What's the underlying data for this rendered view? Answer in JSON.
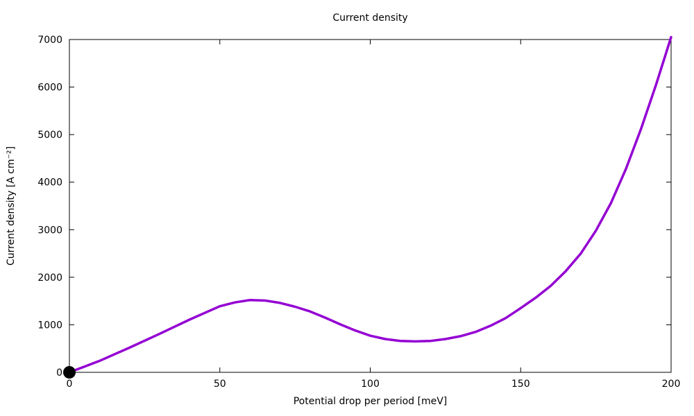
{
  "title": "Current density",
  "chart_data": {
    "type": "line",
    "title": "Current density",
    "xlabel": "Potential drop per period [meV]",
    "ylabel": "Current density [A cm⁻²]",
    "xlim": [
      0,
      200
    ],
    "ylim": [
      0,
      7000
    ],
    "xticks": [
      0,
      50,
      100,
      150,
      200
    ],
    "yticks": [
      0,
      1000,
      2000,
      3000,
      4000,
      5000,
      6000,
      7000
    ],
    "grid": false,
    "legend": "none",
    "line_color": "#9400d3",
    "axis_color": "#000000",
    "marker": {
      "x": 0,
      "y": 0,
      "radius": 9,
      "color": "#000000",
      "shape": "circle"
    },
    "series": [
      {
        "name": "current-density",
        "x": [
          0,
          10,
          20,
          30,
          40,
          50,
          55,
          60,
          65,
          70,
          75,
          80,
          85,
          90,
          95,
          100,
          105,
          110,
          115,
          120,
          125,
          130,
          135,
          140,
          145,
          150,
          155,
          160,
          165,
          170,
          175,
          180,
          185,
          190,
          195,
          200
        ],
        "y": [
          0,
          240,
          520,
          810,
          1110,
          1390,
          1470,
          1520,
          1510,
          1460,
          1380,
          1280,
          1150,
          1010,
          880,
          770,
          700,
          660,
          650,
          660,
          700,
          760,
          850,
          980,
          1140,
          1350,
          1570,
          1820,
          2130,
          2500,
          2980,
          3560,
          4280,
          5120,
          6050,
          7050
        ]
      }
    ]
  }
}
